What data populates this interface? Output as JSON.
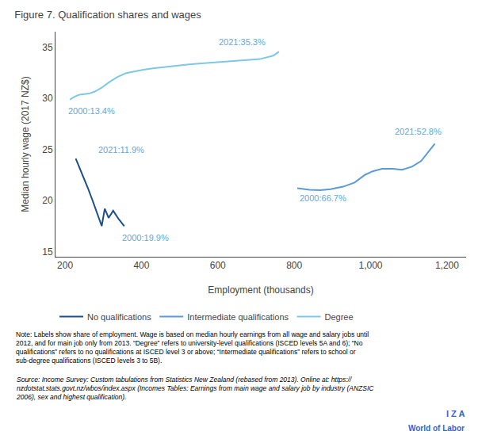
{
  "chart_data": {
    "type": "line",
    "title": "Figure 7. Qualification shares and wages",
    "xlabel": "Employment (thousands)",
    "ylabel": "Median hourly wage (2017 NZ$)",
    "xlim": [
      175,
      1250
    ],
    "ylim": [
      14.5,
      36.5
    ],
    "xticks": [
      200,
      400,
      600,
      800,
      {
        "value": 1000,
        "label": "1,000"
      },
      {
        "value": 1200,
        "label": "1,200"
      }
    ],
    "yticks": [
      15,
      20,
      25,
      30,
      35
    ],
    "grid": false,
    "legend": "bottom",
    "series": [
      {
        "name": "No qualifications",
        "color": "#1b4f8a",
        "x": [
          228,
          245,
          260,
          272,
          280,
          288,
          296,
          304,
          314,
          326,
          340,
          355
        ],
        "values": [
          24.1,
          22.6,
          21.2,
          20.0,
          19.2,
          18.3,
          17.5,
          19.2,
          18.3,
          19.0,
          18.2,
          17.5
        ]
      },
      {
        "name": "Intermediate qualifications",
        "color": "#5b9bd5",
        "x": [
          808,
          840,
          868,
          895,
          928,
          958,
          985,
          1005,
          1030,
          1058,
          1082,
          1108,
          1132,
          1152,
          1168
        ],
        "values": [
          21.2,
          21.05,
          21.0,
          21.1,
          21.35,
          21.75,
          22.5,
          22.85,
          23.1,
          23.1,
          23.0,
          23.3,
          23.85,
          24.8,
          25.55
        ]
      },
      {
        "name": "Degree",
        "color": "#7ec8e3",
        "x": [
          213,
          220,
          228,
          238,
          250,
          263,
          278,
          295,
          315,
          338,
          360,
          382,
          405,
          430,
          458,
          488,
          520,
          555,
          592,
          630,
          670,
          710,
          745,
          760
        ],
        "values": [
          29.85,
          30.05,
          30.2,
          30.35,
          30.4,
          30.45,
          30.65,
          31.0,
          31.55,
          32.1,
          32.45,
          32.62,
          32.78,
          32.92,
          33.05,
          33.15,
          33.28,
          33.4,
          33.5,
          33.62,
          33.72,
          33.82,
          34.15,
          34.55
        ]
      }
    ],
    "annotations": [
      {
        "x": 205,
        "y": 29.4,
        "text": "2000:13.4%",
        "color": "#5aabdc"
      },
      {
        "x": 598,
        "y": 34.9,
        "text": "2021:35.3%",
        "color": "#5aabdc"
      },
      {
        "x": 282,
        "y": 24.3,
        "text": "2021:11.9%",
        "color": "#5aabdc"
      },
      {
        "x": 345,
        "y": 17.0,
        "text": "2000:19.9%",
        "color": "#5aabdc"
      },
      {
        "x": 810,
        "y": 20.85,
        "text": "2000:66.7%",
        "color": "#5aabdc"
      },
      {
        "x": 1060,
        "y": 26.1,
        "text": "2021:52.8%",
        "color": "#5aabdc"
      }
    ],
    "note": "Note: Labels show share of employment. Wage is based on median hourly earnings from all wage and salary jobs until\n2012, and for main job only from 2013. “Degree” refers to university-level qualifications (ISCED levels 5A and 6); “No\nqualifications” refers to no qualifications at ISCED level 3 or above; “Intermediate qualifications” refers to school or\nsub-degree qualifications (ISCED levels 3 to 5B).",
    "source": "Source: Income Survey: Custom tabulations from Statistics New Zealand (rebased from 2013). Online at: https://\nnzdotstat.stats.govt.nz/wbos/index.aspx (Incomes Tables: Earnings from main wage and salary job by industry (ANZSIC\n2006), sex and highest qualification).",
    "logo": [
      "I Z A",
      "World of Labor"
    ],
    "logo_color": "#3366cc"
  }
}
